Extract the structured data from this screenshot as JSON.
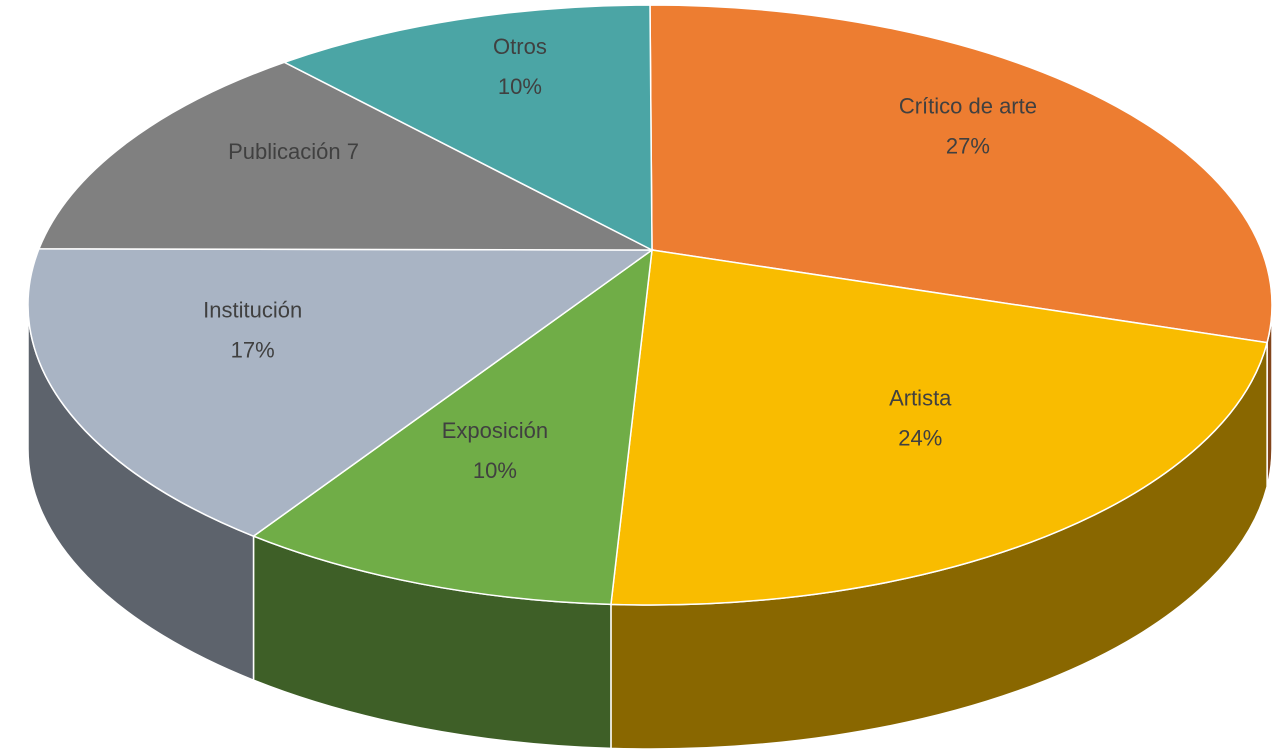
{
  "chart_data": {
    "type": "pie3d",
    "categories": [
      "Crítico de arte",
      "Artista",
      "Exposición",
      "Institución",
      "Publicación 7",
      "Otros"
    ],
    "values": [
      27,
      24,
      10,
      17,
      12,
      10
    ],
    "value_labels": [
      "27%",
      "24%",
      "10%",
      "17%",
      null,
      "10%"
    ],
    "colors": [
      "#ED7D31",
      "#F9BC00",
      "#70AD47",
      "#A9B4C4",
      "#808080",
      "#4BA5A5"
    ]
  }
}
